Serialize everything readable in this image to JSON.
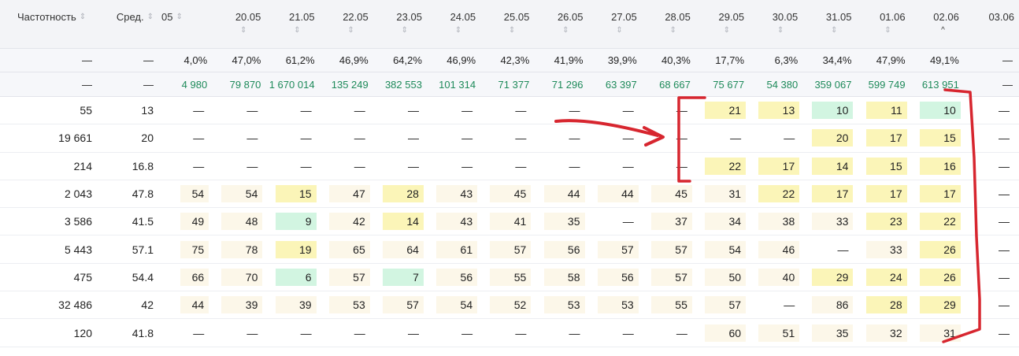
{
  "header": {
    "col_freq": "Частотность",
    "col_avg": "Сред.",
    "dates": [
      "05",
      "20.05",
      "21.05",
      "22.05",
      "23.05",
      "24.05",
      "25.05",
      "26.05",
      "27.05",
      "28.05",
      "29.05",
      "30.05",
      "31.05",
      "01.06",
      "02.06",
      "03.06"
    ],
    "sort_icon": "⇕",
    "sort_active_icon": "^"
  },
  "summary_percent": {
    "freq": "—",
    "avg": "—",
    "values": [
      "4,0%",
      "47,0%",
      "61,2%",
      "46,9%",
      "64,2%",
      "46,9%",
      "42,3%",
      "41,9%",
      "39,9%",
      "40,3%",
      "17,7%",
      "6,3%",
      "34,4%",
      "47,9%",
      "49,1%",
      "—"
    ]
  },
  "summary_volume": {
    "freq": "—",
    "avg": "—",
    "values": [
      "4 980",
      "79 870",
      "1 670 014",
      "135 249",
      "382 553",
      "101 314",
      "71 377",
      "71 296",
      "63 397",
      "68 667",
      "75 677",
      "54 380",
      "359 067",
      "599 749",
      "613 951",
      "—"
    ]
  },
  "rows": [
    {
      "freq": "55",
      "avg": "13",
      "cells": [
        [
          "—",
          "n"
        ],
        [
          "—",
          "n"
        ],
        [
          "—",
          "n"
        ],
        [
          "—",
          "n"
        ],
        [
          "—",
          "n"
        ],
        [
          "—",
          "n"
        ],
        [
          "—",
          "n"
        ],
        [
          "—",
          "n"
        ],
        [
          "—",
          "n"
        ],
        [
          "—",
          "n"
        ],
        [
          "21",
          "y"
        ],
        [
          "13",
          "y"
        ],
        [
          "10",
          "g"
        ],
        [
          "11",
          "y"
        ],
        [
          "10",
          "g"
        ],
        [
          "—",
          "n"
        ]
      ]
    },
    {
      "freq": "19 661",
      "avg": "20",
      "cells": [
        [
          "—",
          "n"
        ],
        [
          "—",
          "n"
        ],
        [
          "—",
          "n"
        ],
        [
          "—",
          "n"
        ],
        [
          "—",
          "n"
        ],
        [
          "—",
          "n"
        ],
        [
          "—",
          "n"
        ],
        [
          "—",
          "n"
        ],
        [
          "—",
          "n"
        ],
        [
          "—",
          "n"
        ],
        [
          "—",
          "n"
        ],
        [
          "—",
          "n"
        ],
        [
          "20",
          "y"
        ],
        [
          "17",
          "y"
        ],
        [
          "15",
          "y"
        ],
        [
          "—",
          "n"
        ]
      ]
    },
    {
      "freq": "214",
      "avg": "16.8",
      "cells": [
        [
          "—",
          "n"
        ],
        [
          "—",
          "n"
        ],
        [
          "—",
          "n"
        ],
        [
          "—",
          "n"
        ],
        [
          "—",
          "n"
        ],
        [
          "—",
          "n"
        ],
        [
          "—",
          "n"
        ],
        [
          "—",
          "n"
        ],
        [
          "—",
          "n"
        ],
        [
          "—",
          "n"
        ],
        [
          "22",
          "y"
        ],
        [
          "17",
          "y"
        ],
        [
          "14",
          "y"
        ],
        [
          "15",
          "y"
        ],
        [
          "16",
          "y"
        ],
        [
          "—",
          "n"
        ]
      ]
    },
    {
      "freq": "2 043",
      "avg": "47.8",
      "cells": [
        [
          "54",
          "l"
        ],
        [
          "54",
          "l"
        ],
        [
          "15",
          "y"
        ],
        [
          "47",
          "l"
        ],
        [
          "28",
          "y"
        ],
        [
          "43",
          "l"
        ],
        [
          "45",
          "l"
        ],
        [
          "44",
          "l"
        ],
        [
          "44",
          "l"
        ],
        [
          "45",
          "l"
        ],
        [
          "31",
          "l"
        ],
        [
          "22",
          "y"
        ],
        [
          "17",
          "y"
        ],
        [
          "17",
          "y"
        ],
        [
          "17",
          "y"
        ],
        [
          "—",
          "n"
        ]
      ]
    },
    {
      "freq": "3 586",
      "avg": "41.5",
      "cells": [
        [
          "49",
          "l"
        ],
        [
          "48",
          "l"
        ],
        [
          "9",
          "g"
        ],
        [
          "42",
          "l"
        ],
        [
          "14",
          "y"
        ],
        [
          "43",
          "l"
        ],
        [
          "41",
          "l"
        ],
        [
          "35",
          "l"
        ],
        [
          "—",
          "n"
        ],
        [
          "37",
          "l"
        ],
        [
          "34",
          "l"
        ],
        [
          "38",
          "l"
        ],
        [
          "33",
          "l"
        ],
        [
          "23",
          "y"
        ],
        [
          "22",
          "y"
        ],
        [
          "—",
          "n"
        ]
      ]
    },
    {
      "freq": "5 443",
      "avg": "57.1",
      "cells": [
        [
          "75",
          "l"
        ],
        [
          "78",
          "l"
        ],
        [
          "19",
          "y"
        ],
        [
          "65",
          "l"
        ],
        [
          "64",
          "l"
        ],
        [
          "61",
          "l"
        ],
        [
          "57",
          "l"
        ],
        [
          "56",
          "l"
        ],
        [
          "57",
          "l"
        ],
        [
          "57",
          "l"
        ],
        [
          "54",
          "l"
        ],
        [
          "46",
          "l"
        ],
        [
          "—",
          "n"
        ],
        [
          "33",
          "l"
        ],
        [
          "26",
          "y"
        ],
        [
          "—",
          "n"
        ]
      ]
    },
    {
      "freq": "475",
      "avg": "54.4",
      "cells": [
        [
          "66",
          "l"
        ],
        [
          "70",
          "l"
        ],
        [
          "6",
          "g"
        ],
        [
          "57",
          "l"
        ],
        [
          "7",
          "g"
        ],
        [
          "56",
          "l"
        ],
        [
          "55",
          "l"
        ],
        [
          "58",
          "l"
        ],
        [
          "56",
          "l"
        ],
        [
          "57",
          "l"
        ],
        [
          "50",
          "l"
        ],
        [
          "40",
          "l"
        ],
        [
          "29",
          "y"
        ],
        [
          "24",
          "y"
        ],
        [
          "26",
          "y"
        ],
        [
          "—",
          "n"
        ]
      ]
    },
    {
      "freq": "32 486",
      "avg": "42",
      "cells": [
        [
          "44",
          "l"
        ],
        [
          "39",
          "l"
        ],
        [
          "39",
          "l"
        ],
        [
          "53",
          "l"
        ],
        [
          "57",
          "l"
        ],
        [
          "54",
          "l"
        ],
        [
          "52",
          "l"
        ],
        [
          "53",
          "l"
        ],
        [
          "53",
          "l"
        ],
        [
          "55",
          "l"
        ],
        [
          "57",
          "l"
        ],
        [
          "—",
          "n"
        ],
        [
          "86",
          "l"
        ],
        [
          "28",
          "y"
        ],
        [
          "29",
          "y"
        ],
        [
          "—",
          "n"
        ]
      ]
    },
    {
      "freq": "120",
      "avg": "41.8",
      "cells": [
        [
          "—",
          "n"
        ],
        [
          "—",
          "n"
        ],
        [
          "—",
          "n"
        ],
        [
          "—",
          "n"
        ],
        [
          "—",
          "n"
        ],
        [
          "—",
          "n"
        ],
        [
          "—",
          "n"
        ],
        [
          "—",
          "n"
        ],
        [
          "—",
          "n"
        ],
        [
          "—",
          "n"
        ],
        [
          "60",
          "l"
        ],
        [
          "51",
          "l"
        ],
        [
          "35",
          "l"
        ],
        [
          "32",
          "l"
        ],
        [
          "31",
          "l"
        ],
        [
          "—",
          "n"
        ]
      ]
    }
  ],
  "colors": {
    "light": "#fcf7e9",
    "yellow": "#fbf5b8",
    "green": "#d2f5e1",
    "volume_text": "#1e8a5a",
    "annotation": "#d7262f"
  }
}
